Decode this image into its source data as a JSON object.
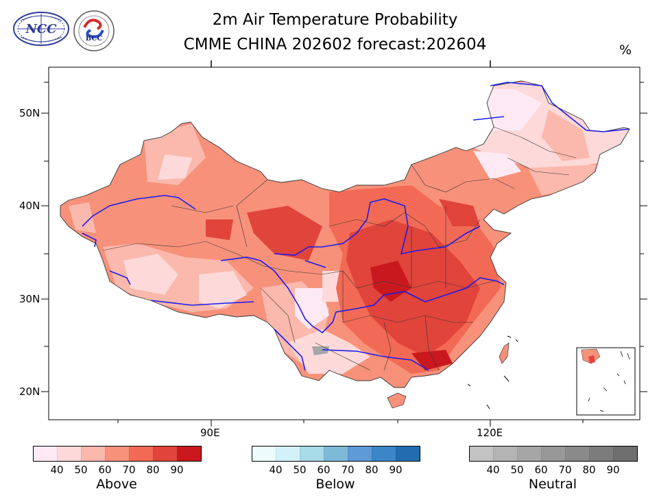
{
  "header": {
    "title_line1": "2m Air Temperature Probability",
    "title_line2": "CMME CHINA 202602 forecast:202604",
    "unit": "%"
  },
  "logos": {
    "left": {
      "text": "NCC",
      "name": "ncc-logo"
    },
    "right": {
      "text": "BCC",
      "name": "bcc-logo"
    }
  },
  "map": {
    "lat_labels": [
      "50N",
      "40N",
      "30N",
      "20N"
    ],
    "lon_labels": [
      "90E",
      "120E"
    ]
  },
  "legend": [
    {
      "title": "Above",
      "ticks": [
        "40",
        "50",
        "60",
        "70",
        "80",
        "90"
      ],
      "colors": [
        "#fde9f3",
        "#fdd9d9",
        "#fbb8ad",
        "#f7917a",
        "#f26a55",
        "#e1443b",
        "#c9191f"
      ]
    },
    {
      "title": "Below",
      "ticks": [
        "40",
        "50",
        "60",
        "70",
        "80",
        "90"
      ],
      "colors": [
        "#eefbfd",
        "#d3f1f9",
        "#a8dbe8",
        "#7ebad8",
        "#5e9ad6",
        "#3c86c8",
        "#226db0"
      ]
    },
    {
      "title": "Neutral",
      "ticks": [
        "40",
        "50",
        "60",
        "70",
        "80",
        "90"
      ],
      "colors": [
        "#c3c3c3",
        "#b4b4b4",
        "#a6a6a6",
        "#989898",
        "#8a8a8a",
        "#7c7c7c",
        "#6e6e6e"
      ]
    }
  ]
}
